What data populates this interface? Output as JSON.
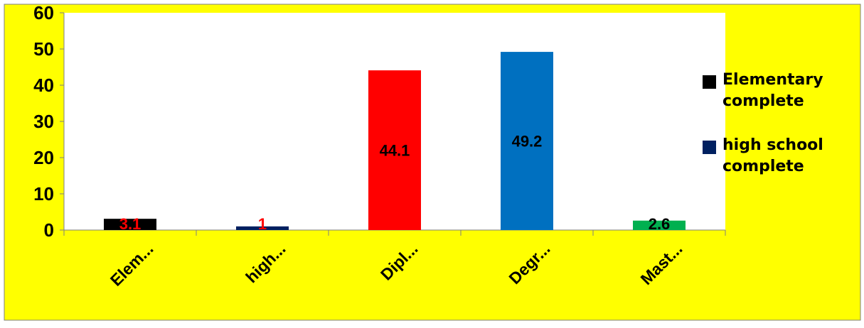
{
  "chart_data": {
    "type": "bar",
    "categories": [
      "Elem...",
      "high...",
      "Dipl...",
      "Degr...",
      "Mast..."
    ],
    "values": [
      3.1,
      1,
      44.1,
      49.2,
      2.6
    ],
    "data_labels": [
      "3.1",
      "1",
      "44.1",
      "49.2",
      "2.6"
    ],
    "bar_colors": [
      "#000000",
      "#002060",
      "#ff0000",
      "#0070c0",
      "#00b050"
    ],
    "data_label_colors": [
      "#ff0000",
      "#ff0000",
      "#000000",
      "#000000",
      "#000000"
    ],
    "ylim": [
      0,
      60
    ],
    "yticks": [
      "0",
      "10",
      "20",
      "30",
      "40",
      "50",
      "60"
    ],
    "grid": false,
    "legend_position": "right",
    "legend": [
      {
        "label": "Elementary complete",
        "color": "#000000"
      },
      {
        "label": "high school complete",
        "color": "#002060"
      }
    ],
    "background_color": "#ffff00",
    "plot_background_color": "#ffffff"
  }
}
